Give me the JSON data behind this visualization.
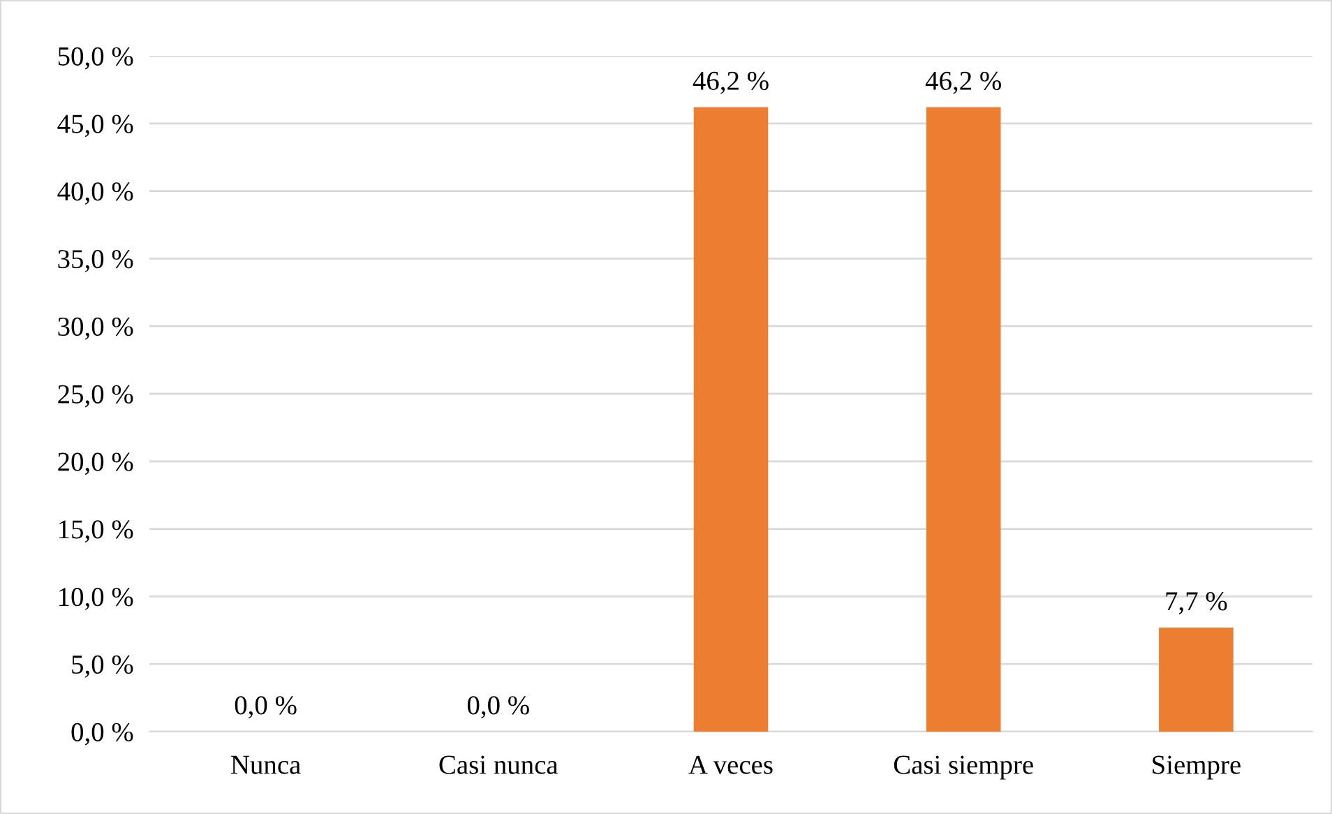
{
  "chart_data": {
    "type": "bar",
    "categories": [
      "Nunca",
      "Casi nunca",
      "A veces",
      "Casi siempre",
      "Siempre"
    ],
    "values": [
      0.0,
      0.0,
      46.2,
      46.2,
      7.7
    ],
    "color": "#ed7d31",
    "value_labels": [
      "0,0 %",
      "0,0 %",
      "46,2 %",
      "46,2 %",
      "7,7 %"
    ],
    "ylim": [
      0,
      50
    ],
    "yticks": [
      {
        "value": 0,
        "label": "0,0 %"
      },
      {
        "value": 5,
        "label": "5,0 %"
      },
      {
        "value": 10,
        "label": "10,0 %"
      },
      {
        "value": 15,
        "label": "15,0 %"
      },
      {
        "value": 20,
        "label": "20,0 %"
      },
      {
        "value": 25,
        "label": "25,0 %"
      },
      {
        "value": 30,
        "label": "30,0 %"
      },
      {
        "value": 35,
        "label": "35,0 %"
      },
      {
        "value": 40,
        "label": "40,0 %"
      },
      {
        "value": 45,
        "label": "45,0 %"
      },
      {
        "value": 50,
        "label": "50,0 %"
      }
    ],
    "grid": "y",
    "legend": false
  }
}
